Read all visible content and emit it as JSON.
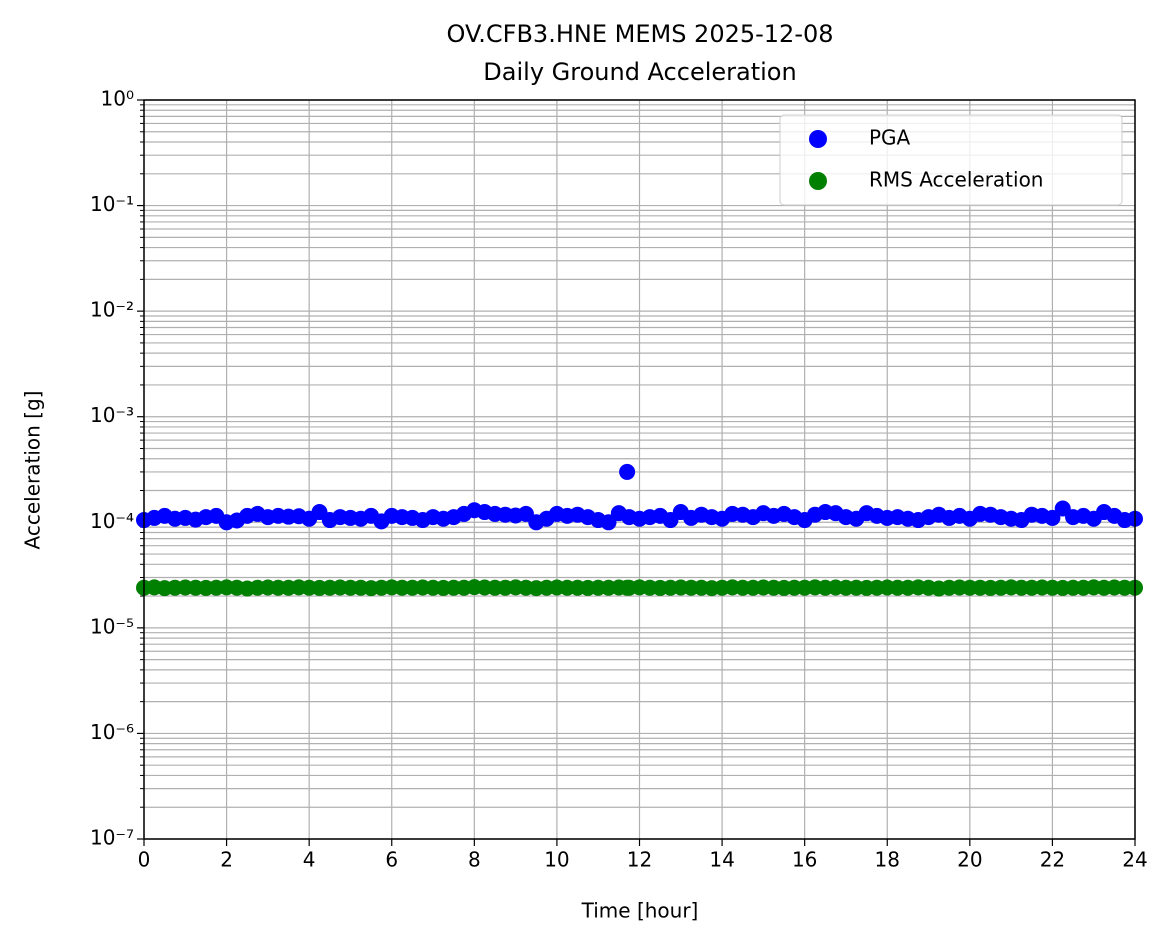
{
  "chart_data": {
    "type": "scatter",
    "title": "OV.CFB3.HNE MEMS 2025-12-08",
    "subtitle": "Daily Ground Acceleration",
    "x_label": "Time [hour]",
    "y_label": "Acceleration [g]",
    "log_y": true,
    "grid": true,
    "minor_grid": true,
    "legend": "upper right",
    "xlim": [
      0,
      24
    ],
    "xticks": [
      0,
      2,
      4,
      6,
      8,
      10,
      12,
      14,
      16,
      18,
      20,
      22,
      24
    ],
    "ylim": [
      1e-07,
      1
    ],
    "yticks": [
      {
        "value": 1e-07,
        "label": "10⁻⁷"
      },
      {
        "value": 1e-06,
        "label": "10⁻⁶"
      },
      {
        "value": 1e-05,
        "label": "10⁻⁵"
      },
      {
        "value": 0.0001,
        "label": "10⁻⁴"
      },
      {
        "value": 0.001,
        "label": "10⁻³"
      },
      {
        "value": 0.01,
        "label": "10⁻²"
      },
      {
        "value": 0.1,
        "label": "10⁻¹"
      },
      {
        "value": 1,
        "label": "10⁰"
      }
    ],
    "x": [
      0,
      0.25,
      0.5,
      0.75,
      1,
      1.25,
      1.5,
      1.75,
      2,
      2.25,
      2.5,
      2.75,
      3,
      3.25,
      3.5,
      3.75,
      4,
      4.25,
      4.5,
      4.75,
      5,
      5.25,
      5.5,
      5.75,
      6,
      6.25,
      6.5,
      6.75,
      7,
      7.25,
      7.5,
      7.75,
      8,
      8.25,
      8.5,
      8.75,
      9,
      9.25,
      9.5,
      9.75,
      10,
      10.25,
      10.5,
      10.75,
      11,
      11.25,
      11.5,
      11.7,
      11.75,
      12,
      12.25,
      12.5,
      12.75,
      13,
      13.25,
      13.5,
      13.75,
      14,
      14.25,
      14.5,
      14.75,
      15,
      15.25,
      15.5,
      15.75,
      16,
      16.25,
      16.5,
      16.75,
      17,
      17.25,
      17.5,
      17.75,
      18,
      18.25,
      18.5,
      18.75,
      19,
      19.25,
      19.5,
      19.75,
      20,
      20.25,
      20.5,
      20.75,
      21,
      21.25,
      21.5,
      21.75,
      22,
      22.25,
      22.5,
      22.75,
      23,
      23.25,
      23.5,
      23.75,
      24
    ],
    "series": [
      {
        "name": "PGA",
        "color": "#0000ff",
        "values": [
          0.000105,
          0.00011,
          0.000115,
          0.000108,
          0.00011,
          0.000106,
          0.000112,
          0.000115,
          0.0001,
          0.000104,
          0.000115,
          0.00012,
          0.000112,
          0.000115,
          0.000113,
          0.000114,
          0.000108,
          0.000125,
          0.000105,
          0.000112,
          0.00011,
          0.000108,
          0.000115,
          0.000102,
          0.000115,
          0.000112,
          0.00011,
          0.000105,
          0.000112,
          0.000108,
          0.000112,
          0.00012,
          0.00013,
          0.000125,
          0.00012,
          0.000118,
          0.000116,
          0.00012,
          0.0001,
          0.000108,
          0.00012,
          0.000115,
          0.000118,
          0.000112,
          0.000105,
          0.0001,
          0.000122,
          0.0003,
          0.000112,
          0.000108,
          0.000112,
          0.000115,
          0.000105,
          0.000125,
          0.00011,
          0.000118,
          0.000112,
          0.000108,
          0.00012,
          0.000118,
          0.000112,
          0.000122,
          0.000115,
          0.00012,
          0.000112,
          0.000105,
          0.000118,
          0.000125,
          0.000122,
          0.000112,
          0.000108,
          0.000122,
          0.000115,
          0.00011,
          0.000112,
          0.000108,
          0.000105,
          0.000112,
          0.000118,
          0.00011,
          0.000115,
          0.000108,
          0.00012,
          0.000118,
          0.000112,
          0.000108,
          0.000105,
          0.000118,
          0.000115,
          0.00011,
          0.000135,
          0.000112,
          0.000115,
          0.000108,
          0.000125,
          0.000115,
          0.000105,
          0.000108
        ]
      },
      {
        "name": "RMS Acceleration",
        "color": "#008000",
        "values": [
          2.4e-05,
          2.42e-05,
          2.38e-05,
          2.4e-05,
          2.41e-05,
          2.4e-05,
          2.39e-05,
          2.4e-05,
          2.42e-05,
          2.4e-05,
          2.36e-05,
          2.4e-05,
          2.41e-05,
          2.4e-05,
          2.4e-05,
          2.42e-05,
          2.4e-05,
          2.39e-05,
          2.4e-05,
          2.41e-05,
          2.4e-05,
          2.4e-05,
          2.38e-05,
          2.4e-05,
          2.42e-05,
          2.4e-05,
          2.4e-05,
          2.41e-05,
          2.4e-05,
          2.39e-05,
          2.4e-05,
          2.4e-05,
          2.43e-05,
          2.41e-05,
          2.4e-05,
          2.4e-05,
          2.42e-05,
          2.4e-05,
          2.38e-05,
          2.4e-05,
          2.41e-05,
          2.4e-05,
          2.4e-05,
          2.39e-05,
          2.4e-05,
          2.4e-05,
          2.41e-05,
          2.4e-05,
          2.4e-05,
          2.42e-05,
          2.4e-05,
          2.39e-05,
          2.4e-05,
          2.41e-05,
          2.4e-05,
          2.4e-05,
          2.38e-05,
          2.4e-05,
          2.42e-05,
          2.4e-05,
          2.4e-05,
          2.41e-05,
          2.4e-05,
          2.39e-05,
          2.4e-05,
          2.4e-05,
          2.42e-05,
          2.4e-05,
          2.41e-05,
          2.4e-05,
          2.4e-05,
          2.39e-05,
          2.4e-05,
          2.41e-05,
          2.4e-05,
          2.4e-05,
          2.42e-05,
          2.4e-05,
          2.36e-05,
          2.4e-05,
          2.41e-05,
          2.4e-05,
          2.4e-05,
          2.39e-05,
          2.4e-05,
          2.42e-05,
          2.4e-05,
          2.4e-05,
          2.41e-05,
          2.4e-05,
          2.39e-05,
          2.4e-05,
          2.4e-05,
          2.42e-05,
          2.4e-05,
          2.41e-05,
          2.4e-05,
          2.4e-05
        ]
      }
    ]
  }
}
